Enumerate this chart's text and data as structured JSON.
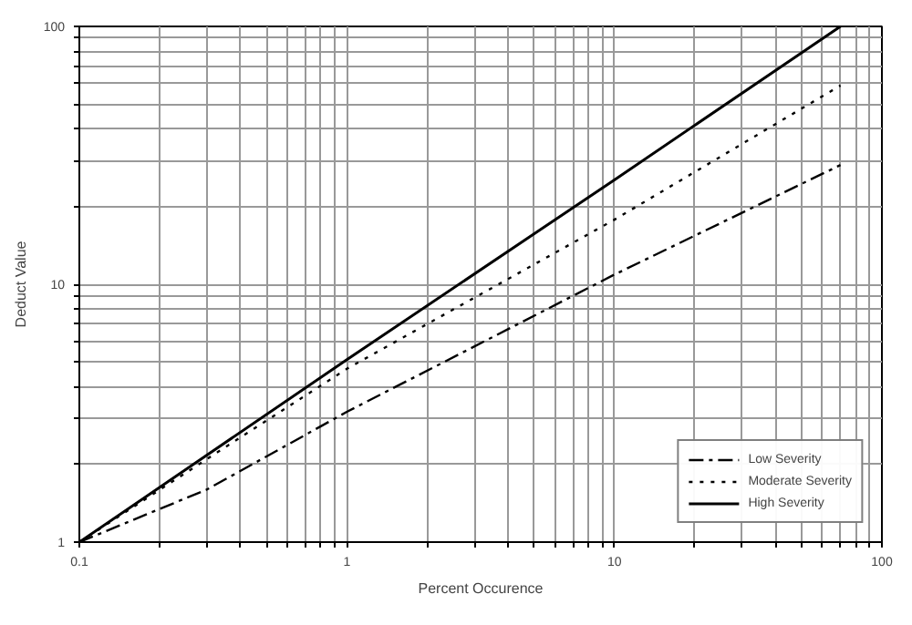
{
  "chart_data": {
    "type": "line",
    "xlabel": "Percent Occurence",
    "ylabel": "Deduct Value",
    "log": "xy",
    "grid": true,
    "legend": "bottom right",
    "xlim": [
      0.1,
      100
    ],
    "ylim": [
      1,
      100
    ],
    "xticks": [
      0.1,
      {
        "value": 0.2,
        "label": null
      },
      {
        "value": 0.3,
        "label": null
      },
      {
        "value": 0.4,
        "label": null
      },
      {
        "value": 0.5,
        "label": null
      },
      {
        "value": 0.6,
        "label": null
      },
      {
        "value": 0.7,
        "label": null
      },
      {
        "value": 0.8,
        "label": null
      },
      {
        "value": 0.9,
        "label": null
      },
      1,
      {
        "value": 2,
        "label": null
      },
      {
        "value": 3,
        "label": null
      },
      {
        "value": 4,
        "label": null
      },
      {
        "value": 5,
        "label": null
      },
      {
        "value": 6,
        "label": null
      },
      {
        "value": 7,
        "label": null
      },
      {
        "value": 8,
        "label": null
      },
      {
        "value": 9,
        "label": null
      },
      10,
      {
        "value": 20,
        "label": null
      },
      {
        "value": 30,
        "label": null
      },
      {
        "value": 40,
        "label": null
      },
      {
        "value": 50,
        "label": null
      },
      {
        "value": 60,
        "label": null
      },
      {
        "value": 70,
        "label": null
      },
      {
        "value": 80,
        "label": null
      },
      {
        "value": 90,
        "label": null
      },
      100
    ],
    "yticks": [
      1,
      {
        "value": 2,
        "label": null
      },
      {
        "value": 3,
        "label": null
      },
      {
        "value": 4,
        "label": null
      },
      {
        "value": 5,
        "label": null
      },
      {
        "value": 6,
        "label": null
      },
      {
        "value": 7,
        "label": null
      },
      {
        "value": 8,
        "label": null
      },
      {
        "value": 9,
        "label": null
      },
      10,
      {
        "value": 20,
        "label": null
      },
      {
        "value": 30,
        "label": null
      },
      {
        "value": 40,
        "label": null
      },
      {
        "value": 50,
        "label": null
      },
      {
        "value": 60,
        "label": null
      },
      {
        "value": 70,
        "label": null
      },
      {
        "value": 80,
        "label": null
      },
      {
        "value": 90,
        "label": null
      },
      100
    ],
    "series": [
      {
        "name": "Low Severity",
        "color": "#000000",
        "line_style": "dashed",
        "x": [
          0.1,
          0.3,
          1,
          10,
          70
        ],
        "values": [
          1,
          1.6,
          3.2,
          10.9,
          29
        ]
      },
      {
        "name": "Moderate Severity",
        "color": "#000000",
        "line_style": "dotted",
        "x": [
          0.1,
          0.3,
          1,
          10,
          70
        ],
        "values": [
          1,
          2.1,
          4.7,
          17.8,
          59
        ]
      },
      {
        "name": "High Severity",
        "color": "#000000",
        "line_style": "solid",
        "x": [
          0.1,
          1,
          10,
          70
        ],
        "values": [
          1,
          5.1,
          25.4,
          100
        ]
      }
    ]
  }
}
